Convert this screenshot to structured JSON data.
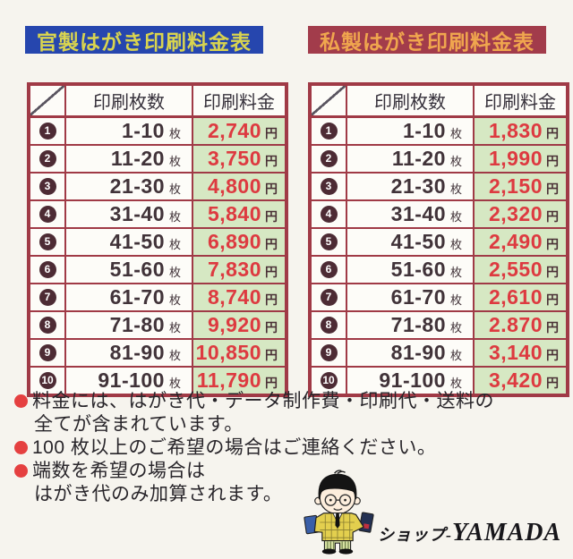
{
  "tables": [
    {
      "title": "官製はがき印刷料金表",
      "title_bg": "#2646ae",
      "title_color": "#d9d44f",
      "header": {
        "qty": "印刷枚数",
        "price": "印刷料金"
      },
      "unit_qty": "枚",
      "unit_price": "円",
      "rows": [
        {
          "no": "1",
          "range": "1-10",
          "price": "2,740"
        },
        {
          "no": "2",
          "range": "11-20",
          "price": "3,750"
        },
        {
          "no": "3",
          "range": "21-30",
          "price": "4,800"
        },
        {
          "no": "4",
          "range": "31-40",
          "price": "5,840"
        },
        {
          "no": "5",
          "range": "41-50",
          "price": "6,890"
        },
        {
          "no": "6",
          "range": "51-60",
          "price": "7,830"
        },
        {
          "no": "7",
          "range": "61-70",
          "price": "8,740"
        },
        {
          "no": "8",
          "range": "71-80",
          "price": "9,920"
        },
        {
          "no": "9",
          "range": "81-90",
          "price": "10,850"
        },
        {
          "no": "10",
          "range": "91-100",
          "price": "11,790"
        }
      ]
    },
    {
      "title": "私製はがき印刷料金表",
      "title_bg": "#a23c4b",
      "title_color": "#f0a64e",
      "header": {
        "qty": "印刷枚数",
        "price": "印刷料金"
      },
      "unit_qty": "枚",
      "unit_price": "円",
      "rows": [
        {
          "no": "1",
          "range": "1-10",
          "price": "1,830"
        },
        {
          "no": "2",
          "range": "11-20",
          "price": "1,990"
        },
        {
          "no": "3",
          "range": "21-30",
          "price": "2,150"
        },
        {
          "no": "4",
          "range": "31-40",
          "price": "2,320"
        },
        {
          "no": "5",
          "range": "41-50",
          "price": "2,490"
        },
        {
          "no": "6",
          "range": "51-60",
          "price": "2,550"
        },
        {
          "no": "7",
          "range": "61-70",
          "price": "2,610"
        },
        {
          "no": "8",
          "range": "71-80",
          "price": "2.870"
        },
        {
          "no": "9",
          "range": "81-90",
          "price": "3,140"
        },
        {
          "no": "10",
          "range": "91-100",
          "price": "3,420"
        }
      ]
    }
  ],
  "notes": [
    {
      "lines": [
        "料金には、はがき代・データ制作費・印刷代・送料の",
        "全てが含まれています。"
      ]
    },
    {
      "lines": [
        "100 枚以上のご希望の場合はご連絡ください。"
      ]
    },
    {
      "lines": [
        "端数を希望の場合は",
        "はがき代のみ加算されます。"
      ]
    }
  ],
  "shop": {
    "label_prefix": "ショップ-",
    "label_name": "YAMADA"
  },
  "colors": {
    "border": "#a03a46",
    "price_cell_bg": "#d6e8c3",
    "price_text": "#dd3a40",
    "bullet": "#e54040",
    "official_title_bg": "#2646ae",
    "private_title_bg": "#a23c4b"
  }
}
